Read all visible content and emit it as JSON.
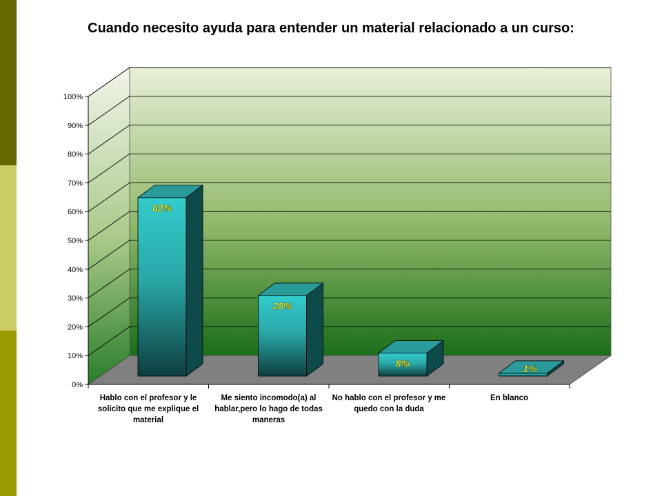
{
  "slide": {
    "stripe_colors": [
      "#666600",
      "#cccc66",
      "#999900"
    ]
  },
  "chart_data": {
    "type": "bar",
    "title": "Cuando necesito ayuda para entender un material relacionado a un curso:",
    "categories": [
      "Hablo con el profesor y le solicito que me explique el material",
      "Me siento incomodo(a) al hablar,pero lo hago de todas maneras",
      "No hablo con el profesor y me quedo con la duda",
      "En blanco"
    ],
    "values": [
      62,
      28,
      8,
      1
    ],
    "data_labels": [
      "62%",
      "28%",
      "8%",
      "1%"
    ],
    "yticks": [
      "0%",
      "10%",
      "20%",
      "30%",
      "40%",
      "50%",
      "60%",
      "70%",
      "80%",
      "90%",
      "100%"
    ],
    "ylim": [
      0,
      100
    ],
    "grid": true,
    "three_d": true,
    "colors": {
      "bar_front_top": "#33cccc",
      "bar_front_bottom": "#0f3f3f",
      "bar_side": "#0d4a4a",
      "bar_top": "#2a9a9a",
      "wall_top": "#e8efd8",
      "wall_bottom": "#1a6e1a",
      "floor": "#808080",
      "label": "#ffff33"
    }
  }
}
